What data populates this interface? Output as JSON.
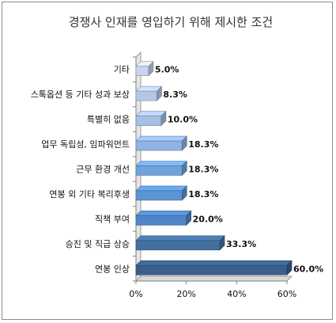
{
  "chart_data": {
    "type": "bar",
    "orientation": "horizontal",
    "title": "경쟁사 인재를 영입하기 위해 제시한 조건",
    "categories": [
      "기타",
      "스톡옵션 등 기타 성과 보상",
      "특별히 없음",
      "업무 독립성, 임파워먼트",
      "근무 환경 개선",
      "연봉 외 기타 복리후생",
      "직책 부여",
      "승진 및 직급 상승",
      "연봉 인상"
    ],
    "values": [
      5.0,
      8.3,
      10.0,
      18.3,
      18.3,
      18.3,
      20.0,
      33.3,
      60.0
    ],
    "value_labels": [
      "5.0%",
      "8.3%",
      "10.0%",
      "18.3%",
      "18.3%",
      "18.3%",
      "20.0%",
      "33.3%",
      "60.0%"
    ],
    "xlim": [
      0,
      60
    ],
    "x_ticks": [
      "0%",
      "20%",
      "40%",
      "60%"
    ],
    "bar_colors": [
      "#c8d4ec",
      "#b4c6e7",
      "#a7bfe4",
      "#8fb4e3",
      "#6fa3dc",
      "#5b95d2",
      "#4f86c6",
      "#44709f",
      "#3a5f8b"
    ],
    "grid": false,
    "legend": "none"
  }
}
